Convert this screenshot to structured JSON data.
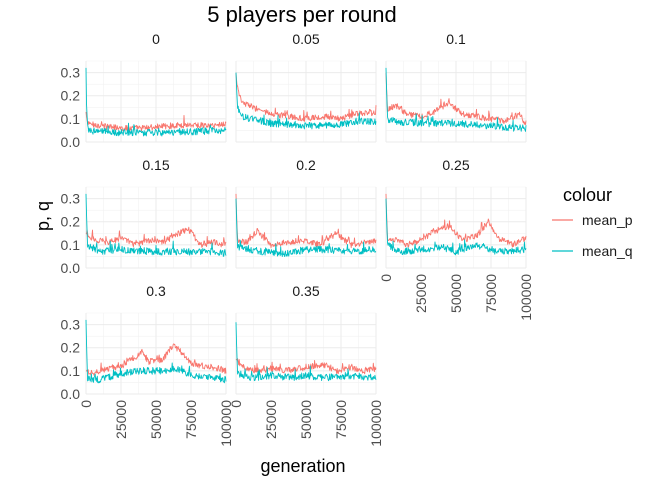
{
  "chart_data": {
    "type": "line",
    "title": "5 players per round",
    "xlabel": "generation",
    "ylabel": "p, q",
    "xlim": [
      0,
      100000
    ],
    "ylim": [
      0,
      0.35
    ],
    "x_ticks": [
      0,
      25000,
      50000,
      75000,
      100000
    ],
    "y_ticks": [
      0.0,
      0.1,
      0.2,
      0.3
    ],
    "y_tick_labels": [
      "0.0",
      "0.1",
      "0.2",
      "0.3"
    ],
    "grid": true,
    "legend": {
      "title": "colour",
      "position": "right",
      "entries": [
        {
          "name": "mean_p",
          "color": "#F8766D"
        },
        {
          "name": "mean_q",
          "color": "#00BFC4"
        }
      ]
    },
    "facets": [
      {
        "label": "0",
        "mean_p": [
          [
            0,
            0.13
          ],
          [
            1000,
            0.08
          ],
          [
            10000,
            0.07
          ],
          [
            25000,
            0.06
          ],
          [
            40000,
            0.06
          ],
          [
            50000,
            0.065
          ],
          [
            60000,
            0.07
          ],
          [
            75000,
            0.075
          ],
          [
            90000,
            0.07
          ],
          [
            100000,
            0.08
          ]
        ],
        "mean_q": [
          [
            0,
            0.32
          ],
          [
            500,
            0.12
          ],
          [
            2000,
            0.05
          ],
          [
            25000,
            0.04
          ],
          [
            50000,
            0.04
          ],
          [
            75000,
            0.045
          ],
          [
            100000,
            0.05
          ]
        ]
      },
      {
        "label": "0.05",
        "mean_p": [
          [
            0,
            0.3
          ],
          [
            1000,
            0.22
          ],
          [
            5000,
            0.17
          ],
          [
            12000,
            0.15
          ],
          [
            25000,
            0.12
          ],
          [
            40000,
            0.11
          ],
          [
            50000,
            0.1
          ],
          [
            65000,
            0.11
          ],
          [
            75000,
            0.1
          ],
          [
            85000,
            0.12
          ],
          [
            95000,
            0.13
          ],
          [
            100000,
            0.12
          ]
        ],
        "mean_q": [
          [
            0,
            0.3
          ],
          [
            1000,
            0.15
          ],
          [
            5000,
            0.11
          ],
          [
            25000,
            0.08
          ],
          [
            50000,
            0.07
          ],
          [
            75000,
            0.075
          ],
          [
            90000,
            0.09
          ],
          [
            100000,
            0.09
          ]
        ]
      },
      {
        "label": "0.1",
        "mean_p": [
          [
            0,
            0.3
          ],
          [
            1000,
            0.14
          ],
          [
            7000,
            0.16
          ],
          [
            15000,
            0.12
          ],
          [
            25000,
            0.11
          ],
          [
            35000,
            0.13
          ],
          [
            45000,
            0.17
          ],
          [
            55000,
            0.12
          ],
          [
            65000,
            0.11
          ],
          [
            75000,
            0.1
          ],
          [
            85000,
            0.09
          ],
          [
            95000,
            0.12
          ],
          [
            100000,
            0.08
          ]
        ],
        "mean_q": [
          [
            0,
            0.32
          ],
          [
            1000,
            0.1
          ],
          [
            5000,
            0.09
          ],
          [
            25000,
            0.08
          ],
          [
            50000,
            0.08
          ],
          [
            75000,
            0.07
          ],
          [
            90000,
            0.06
          ],
          [
            100000,
            0.06
          ]
        ]
      },
      {
        "label": "0.15",
        "mean_p": [
          [
            0,
            0.15
          ],
          [
            3000,
            0.13
          ],
          [
            15000,
            0.11
          ],
          [
            25000,
            0.13
          ],
          [
            35000,
            0.1
          ],
          [
            45000,
            0.12
          ],
          [
            55000,
            0.11
          ],
          [
            63000,
            0.14
          ],
          [
            73000,
            0.17
          ],
          [
            82000,
            0.1
          ],
          [
            90000,
            0.11
          ],
          [
            100000,
            0.1
          ]
        ],
        "mean_q": [
          [
            0,
            0.32
          ],
          [
            1000,
            0.1
          ],
          [
            10000,
            0.07
          ],
          [
            25000,
            0.08
          ],
          [
            50000,
            0.07
          ],
          [
            75000,
            0.07
          ],
          [
            90000,
            0.07
          ],
          [
            100000,
            0.06
          ]
        ]
      },
      {
        "label": "0.2",
        "mean_p": [
          [
            0,
            0.32
          ],
          [
            1000,
            0.12
          ],
          [
            8000,
            0.11
          ],
          [
            15000,
            0.16
          ],
          [
            25000,
            0.1
          ],
          [
            35000,
            0.11
          ],
          [
            50000,
            0.12
          ],
          [
            60000,
            0.1
          ],
          [
            72000,
            0.15
          ],
          [
            82000,
            0.1
          ],
          [
            92000,
            0.11
          ],
          [
            100000,
            0.12
          ]
        ],
        "mean_q": [
          [
            0,
            0.3
          ],
          [
            1000,
            0.09
          ],
          [
            10000,
            0.08
          ],
          [
            20000,
            0.07
          ],
          [
            35000,
            0.06
          ],
          [
            50000,
            0.08
          ],
          [
            65000,
            0.08
          ],
          [
            80000,
            0.07
          ],
          [
            100000,
            0.08
          ]
        ]
      },
      {
        "label": "0.25",
        "mean_p": [
          [
            0,
            0.32
          ],
          [
            1000,
            0.13
          ],
          [
            8000,
            0.12
          ],
          [
            15000,
            0.1
          ],
          [
            25000,
            0.12
          ],
          [
            35000,
            0.16
          ],
          [
            45000,
            0.18
          ],
          [
            55000,
            0.12
          ],
          [
            65000,
            0.14
          ],
          [
            73000,
            0.2
          ],
          [
            80000,
            0.13
          ],
          [
            90000,
            0.1
          ],
          [
            100000,
            0.13
          ]
        ],
        "mean_q": [
          [
            0,
            0.3
          ],
          [
            1000,
            0.1
          ],
          [
            10000,
            0.07
          ],
          [
            25000,
            0.08
          ],
          [
            40000,
            0.09
          ],
          [
            50000,
            0.07
          ],
          [
            65000,
            0.1
          ],
          [
            80000,
            0.07
          ],
          [
            100000,
            0.08
          ]
        ]
      },
      {
        "label": "0.3",
        "mean_p": [
          [
            0,
            0.1
          ],
          [
            5000,
            0.09
          ],
          [
            15000,
            0.11
          ],
          [
            25000,
            0.12
          ],
          [
            35000,
            0.16
          ],
          [
            40000,
            0.18
          ],
          [
            45000,
            0.14
          ],
          [
            55000,
            0.15
          ],
          [
            62000,
            0.21
          ],
          [
            67000,
            0.19
          ],
          [
            75000,
            0.13
          ],
          [
            85000,
            0.12
          ],
          [
            95000,
            0.11
          ],
          [
            100000,
            0.1
          ]
        ],
        "mean_q": [
          [
            0,
            0.32
          ],
          [
            1000,
            0.07
          ],
          [
            10000,
            0.06
          ],
          [
            25000,
            0.09
          ],
          [
            40000,
            0.1
          ],
          [
            55000,
            0.1
          ],
          [
            65000,
            0.11
          ],
          [
            75000,
            0.08
          ],
          [
            90000,
            0.07
          ],
          [
            100000,
            0.06
          ]
        ]
      },
      {
        "label": "0.35",
        "mean_p": [
          [
            0,
            0.15
          ],
          [
            5000,
            0.12
          ],
          [
            15000,
            0.1
          ],
          [
            25000,
            0.11
          ],
          [
            35000,
            0.1
          ],
          [
            45000,
            0.11
          ],
          [
            55000,
            0.12
          ],
          [
            62000,
            0.13
          ],
          [
            72000,
            0.1
          ],
          [
            82000,
            0.11
          ],
          [
            92000,
            0.1
          ],
          [
            100000,
            0.11
          ]
        ],
        "mean_q": [
          [
            0,
            0.31
          ],
          [
            1000,
            0.09
          ],
          [
            10000,
            0.07
          ],
          [
            25000,
            0.08
          ],
          [
            40000,
            0.07
          ],
          [
            50000,
            0.08
          ],
          [
            65000,
            0.07
          ],
          [
            80000,
            0.08
          ],
          [
            100000,
            0.07
          ]
        ]
      }
    ]
  }
}
